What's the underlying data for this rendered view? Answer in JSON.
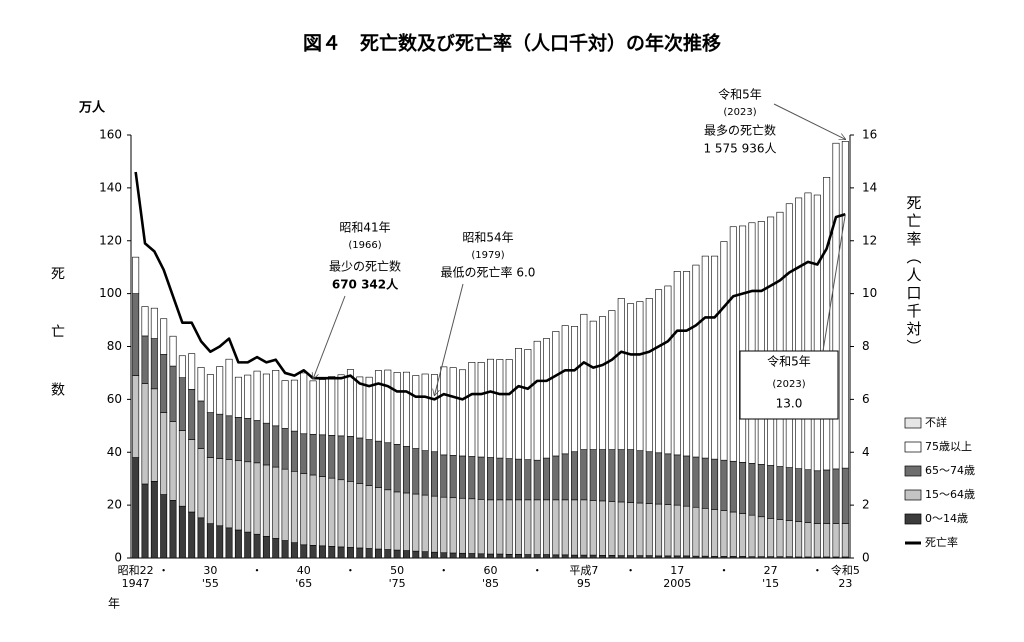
{
  "chart_data": {
    "type": "bar",
    "title": "図４　死亡数及び死亡率（人口千対）の年次推移",
    "y_unit": "万人",
    "y_label": "死亡数",
    "y2_label": "死亡率（人口千対）",
    "x_label": "年",
    "stacked": true,
    "categories": [
      "昭和22",
      null,
      null,
      "・",
      null,
      null,
      null,
      null,
      "30",
      null,
      null,
      null,
      null,
      "・",
      null,
      null,
      null,
      null,
      "40",
      null,
      null,
      null,
      null,
      "・",
      null,
      null,
      null,
      null,
      "50",
      null,
      null,
      null,
      null,
      "・",
      null,
      null,
      null,
      null,
      "60",
      null,
      null,
      null,
      null,
      "・",
      null,
      null,
      null,
      null,
      "平成7",
      null,
      null,
      null,
      null,
      "・",
      null,
      null,
      null,
      null,
      "17",
      null,
      null,
      null,
      null,
      "・",
      null,
      null,
      null,
      null,
      "27",
      null,
      null,
      null,
      null,
      "・",
      null,
      null,
      "令和5"
    ],
    "category_years": [
      "1947",
      null,
      null,
      null,
      null,
      null,
      null,
      null,
      "'55",
      null,
      null,
      null,
      null,
      null,
      null,
      null,
      null,
      null,
      "'65",
      null,
      null,
      null,
      null,
      null,
      null,
      null,
      null,
      null,
      "'75",
      null,
      null,
      null,
      null,
      null,
      null,
      null,
      null,
      null,
      "'85",
      null,
      null,
      null,
      null,
      null,
      null,
      null,
      null,
      null,
      "95",
      null,
      null,
      null,
      null,
      null,
      null,
      null,
      null,
      null,
      "2005",
      null,
      null,
      null,
      null,
      null,
      null,
      null,
      null,
      null,
      "'15",
      null,
      null,
      null,
      null,
      null,
      null,
      null,
      "23"
    ],
    "ylim": [
      0,
      160
    ],
    "yticks": [
      0,
      20,
      40,
      60,
      80,
      100,
      120,
      140,
      160
    ],
    "y2lim": [
      0,
      16
    ],
    "y2ticks": [
      0,
      2,
      4,
      6,
      8,
      10,
      12,
      14,
      16
    ],
    "series": [
      {
        "name": "0～14歳",
        "color": "#3c3c3c",
        "values": [
          38,
          28,
          29,
          24,
          21.8,
          19.6,
          17.4,
          15.2,
          13,
          12.2,
          11.4,
          10.6,
          9.8,
          9,
          8.2,
          7.4,
          6.6,
          5.8,
          5,
          4.8,
          4.6,
          4.4,
          4.2,
          4,
          3.8,
          3.6,
          3.4,
          3.2,
          3,
          2.8,
          2.6,
          2.4,
          2.2,
          2,
          1.9,
          1.8,
          1.7,
          1.6,
          1.5,
          1.5,
          1.4,
          1.4,
          1.3,
          1.3,
          1.3,
          1.2,
          1.2,
          1.1,
          1.1,
          1.1,
          1.0,
          1.0,
          0.9,
          0.9,
          0.9,
          0.9,
          0.8,
          0.8,
          0.8,
          0.8,
          0.7,
          0.7,
          0.6,
          0.6,
          0.6,
          0.6,
          0.5,
          0.5,
          0.5,
          0.5,
          0.5,
          0.4,
          0.4,
          0.4,
          0.4,
          0.4,
          0.4
        ]
      },
      {
        "name": "15～64歳",
        "color": "#c4c4c4",
        "values": [
          31,
          38,
          35,
          31,
          29.8,
          28.6,
          27.4,
          26.2,
          25,
          25.4,
          25.8,
          26.2,
          26.6,
          27,
          27.0,
          27.0,
          27.0,
          27.0,
          27,
          26.6,
          26.2,
          25.8,
          25.4,
          25,
          24.4,
          23.8,
          23.2,
          22.6,
          22,
          21.8,
          21.6,
          21.4,
          21.2,
          21,
          20.9,
          20.8,
          20.7,
          20.6,
          20.5,
          20.5,
          20.6,
          20.6,
          20.7,
          20.7,
          20.7,
          20.8,
          20.8,
          20.9,
          20.9,
          20.7,
          20.6,
          20.4,
          20.3,
          20.1,
          19.9,
          19.7,
          19.6,
          19.4,
          19.2,
          18.8,
          18.5,
          18.1,
          17.8,
          17.4,
          16.8,
          16.2,
          15.7,
          15.1,
          14.5,
          14.1,
          13.7,
          13.4,
          13.0,
          12.6,
          12.6,
          12.6,
          12.6
        ]
      },
      {
        "name": "65～74歳",
        "color": "#6e6e6e",
        "values": [
          31,
          18,
          19,
          22,
          21.0,
          20.0,
          19.0,
          18.0,
          17,
          16.8,
          16.6,
          16.4,
          16.4,
          16,
          15.8,
          15.6,
          15.4,
          15.2,
          15,
          15.4,
          15.8,
          16.2,
          16.6,
          17,
          17.2,
          17.4,
          17.6,
          17.8,
          18,
          17.6,
          17.2,
          16.8,
          16.8,
          16,
          16.0,
          16.0,
          16.0,
          16.0,
          16.0,
          15.8,
          15.6,
          15.4,
          15.2,
          15.0,
          15.8,
          16.6,
          17.4,
          18.2,
          19.0,
          19.2,
          19.4,
          19.6,
          19.8,
          20.0,
          19.8,
          19.6,
          19.4,
          19.2,
          19.0,
          19.0,
          19.0,
          19.0,
          19.0,
          19.0,
          19.2,
          19.4,
          19.6,
          19.8,
          20.0,
          20.0,
          20.0,
          20.0,
          20.0,
          20.0,
          20.3,
          20.7,
          21.0
        ]
      },
      {
        "name": "75歳以上",
        "color": "#ffffff",
        "values": [
          13.8,
          11.1,
          11.5,
          13.5,
          11.3,
          8.3,
          13.5,
          12.7,
          14.4,
          18.0,
          21.4,
          15.2,
          16.4,
          18.7,
          18.6,
          21.0,
          18.1,
          19.3,
          23.0,
          20.2,
          20.9,
          22.3,
          23.1,
          25.3,
          23.1,
          23.6,
          26.7,
          27.5,
          27.2,
          28.1,
          27.6,
          29.0,
          29.2,
          33.3,
          33.2,
          32.6,
          35.6,
          35.8,
          37.2,
          37.3,
          37.5,
          41.9,
          41.7,
          45.0,
          45.2,
          47.1,
          48.5,
          47.4,
          51.2,
          48.6,
          50.3,
          52.6,
          57.2,
          55.2,
          56.4,
          58.0,
          61.7,
          63.5,
          69.4,
          69.8,
          72.6,
          76.4,
          76.8,
          82.7,
          88.7,
          89.4,
          91.0,
          91.9,
          94.0,
          96.2,
          99.8,
          102.4,
          104.7,
          104.3,
          110.7,
          123.2,
          123.6
        ]
      },
      {
        "name": "不詳",
        "color": "#e6e6e6",
        "values": [
          0,
          0,
          0,
          0,
          0,
          0,
          0,
          0,
          0,
          0,
          0,
          0,
          0,
          0,
          0,
          0,
          0,
          0,
          0,
          0,
          0,
          0,
          0,
          0,
          0,
          0,
          0,
          0,
          0,
          0,
          0,
          0,
          0,
          0,
          0,
          0,
          0,
          0,
          0,
          0,
          0,
          0,
          0,
          0,
          0,
          0,
          0,
          0,
          0,
          0,
          0,
          0,
          0,
          0,
          0,
          0,
          0,
          0,
          0,
          0,
          0,
          0,
          0,
          0,
          0,
          0,
          0,
          0,
          0,
          0,
          0,
          0,
          0,
          0,
          0,
          0,
          0
        ]
      },
      {
        "name": "死亡率",
        "color": "#000000",
        "type": "line",
        "axis": "y2",
        "values": [
          14.6,
          11.9,
          11.6,
          10.9,
          9.9,
          8.9,
          8.9,
          8.2,
          7.8,
          8.0,
          8.3,
          7.4,
          7.4,
          7.6,
          7.4,
          7.5,
          7.0,
          6.9,
          7.1,
          6.8,
          6.8,
          6.8,
          6.8,
          6.9,
          6.6,
          6.5,
          6.6,
          6.5,
          6.3,
          6.3,
          6.1,
          6.1,
          6.0,
          6.2,
          6.1,
          6.0,
          6.2,
          6.2,
          6.3,
          6.2,
          6.2,
          6.5,
          6.4,
          6.7,
          6.7,
          6.9,
          7.1,
          7.1,
          7.4,
          7.2,
          7.3,
          7.5,
          7.8,
          7.7,
          7.7,
          7.8,
          8.0,
          8.2,
          8.6,
          8.6,
          8.8,
          9.1,
          9.1,
          9.5,
          9.9,
          10.0,
          10.1,
          10.1,
          10.3,
          10.5,
          10.8,
          11.0,
          11.2,
          11.1,
          11.7,
          12.9,
          13.0
        ]
      }
    ],
    "annotations": [
      {
        "lines": [
          "令和5年",
          "(2023)",
          "最多の死亡数",
          "1 575 936人"
        ]
      },
      {
        "lines": [
          "昭和41年",
          "(1966)",
          "最少の死亡数",
          "670 342人"
        ]
      },
      {
        "lines": [
          "昭和54年",
          "(1979)",
          "最低の死亡率 6.0"
        ]
      },
      {
        "lines": [
          "令和5年",
          "(2023)",
          "13.0"
        ]
      }
    ],
    "legend": "right"
  }
}
